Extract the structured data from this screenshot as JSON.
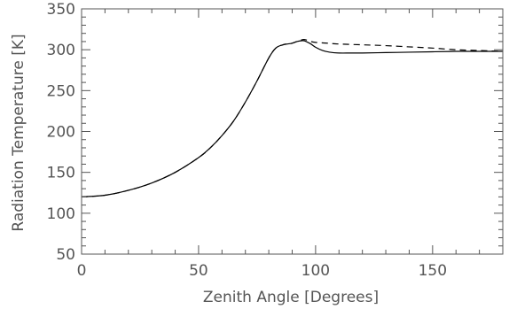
{
  "chart_data": {
    "type": "line",
    "title": "",
    "xlabel": "Zenith Angle [Degrees]",
    "ylabel": "Radiation Temperature [K]",
    "xlim": [
      0,
      180
    ],
    "ylim": [
      50,
      350
    ],
    "xticks": [
      0,
      50,
      100,
      150
    ],
    "yticks": [
      50,
      100,
      150,
      200,
      250,
      300,
      350
    ],
    "grid": false,
    "legend": "none",
    "series": [
      {
        "style": "solid",
        "color": "#000000",
        "x": [
          0,
          10,
          20,
          30,
          40,
          50,
          55,
          60,
          65,
          70,
          75,
          80,
          83,
          86,
          88,
          90,
          92,
          94,
          95,
          96,
          98,
          100,
          103,
          106,
          110,
          115,
          120,
          130,
          140,
          150,
          160,
          170,
          180
        ],
        "y": [
          120,
          122,
          128,
          137,
          150,
          168,
          180,
          195,
          213,
          236,
          262,
          290,
          302,
          306,
          307,
          308,
          310,
          311,
          311,
          310,
          307,
          303,
          299,
          297,
          296,
          296,
          296,
          296.5,
          297,
          297.5,
          298,
          298,
          298
        ]
      },
      {
        "style": "dashed",
        "color": "#000000",
        "x": [
          0,
          10,
          20,
          30,
          40,
          50,
          55,
          60,
          65,
          70,
          75,
          80,
          83,
          86,
          88,
          90,
          92,
          94,
          95,
          96,
          98,
          100,
          105,
          110,
          120,
          130,
          140,
          150,
          160,
          170,
          180
        ],
        "y": [
          120,
          122,
          128,
          137,
          150,
          168,
          180,
          195,
          213,
          236,
          262,
          290,
          302,
          306,
          307,
          308,
          310,
          312,
          312.5,
          312,
          310,
          309,
          308,
          307,
          306,
          305,
          303.5,
          302,
          300,
          299,
          298
        ]
      }
    ]
  }
}
